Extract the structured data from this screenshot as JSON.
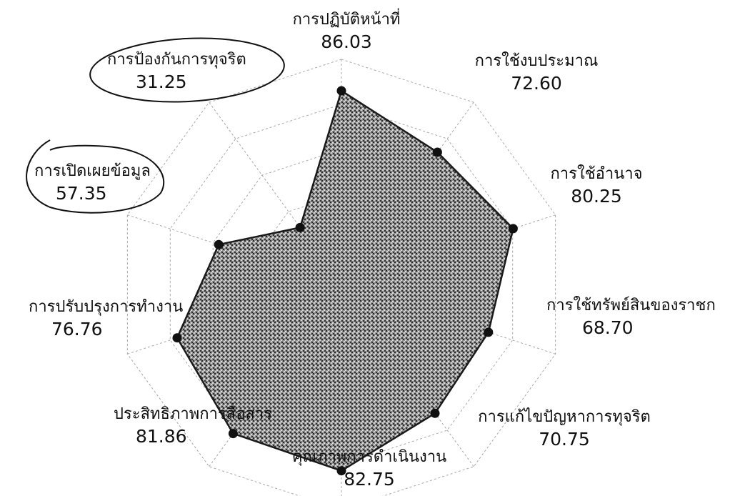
{
  "chart_data": {
    "type": "radar",
    "rmax": 100,
    "grid_levels": 5,
    "categories": [
      "การปฏิบัติหน้าที่",
      "การใช้งบประมาณ",
      "การใช้อำนาจ",
      "การใช้ทรัพย์สินของราชก",
      "การแก้ไขปัญหาการทุจริต",
      "คุณภาพการดำเนินงาน",
      "ประสิทธิภาพการสื่อสาร",
      "การปรับปรุงการทำงาน",
      "การเปิดเผยข้อมูล",
      "การป้องกันการทุจริต"
    ],
    "values": [
      86.03,
      72.6,
      80.25,
      68.7,
      70.75,
      82.75,
      81.86,
      76.76,
      57.35,
      31.25
    ],
    "value_labels": [
      "86.03",
      "72.60",
      "80.25",
      "68.70",
      "70.75",
      "82.75",
      "81.86",
      "76.76",
      "57.35",
      "31.25"
    ],
    "colors": {
      "fill": "#7a7a7a",
      "stroke": "#1a1a1a",
      "grid": "#a8a8a8",
      "point": "#111111"
    }
  }
}
